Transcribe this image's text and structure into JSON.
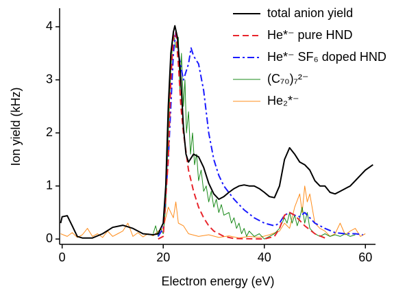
{
  "chart_data": {
    "type": "line",
    "xlabel": "Electron energy (eV)",
    "ylabel": "Ion yield (kHz)",
    "xlim": [
      -0.5,
      62
    ],
    "xticks": [
      0,
      20,
      40,
      60
    ],
    "ylim": [
      -0.1,
      4.35
    ],
    "yticks": [
      0,
      1,
      2,
      3,
      4
    ],
    "grid": false,
    "legend": "upper right",
    "series": [
      {
        "name": "total anion yield",
        "color": "#000000",
        "style": "solid",
        "width": 2,
        "x": [
          -0.3,
          0,
          1,
          2,
          3,
          4,
          6,
          8,
          10,
          12,
          14,
          16,
          18,
          19,
          20,
          20.5,
          21,
          21.5,
          22,
          22.3,
          22.8,
          23.5,
          24,
          24.5,
          25,
          26,
          27,
          28,
          29,
          30,
          31,
          32,
          33,
          34,
          35,
          36,
          37,
          38,
          39,
          40,
          41,
          42,
          43,
          44,
          45,
          46,
          47,
          48,
          49,
          50,
          51,
          52,
          53,
          54,
          55,
          56,
          57,
          58,
          59,
          60,
          61.5
        ],
        "values": [
          0.3,
          0.42,
          0.44,
          0.25,
          0.05,
          0.02,
          0.02,
          0.1,
          0.22,
          0.26,
          0.2,
          0.1,
          0.08,
          0.1,
          0.3,
          1.0,
          2.5,
          3.5,
          3.9,
          4.02,
          3.8,
          3.0,
          2.1,
          1.6,
          1.45,
          1.6,
          1.55,
          1.35,
          1.05,
          0.85,
          0.75,
          0.8,
          0.88,
          0.95,
          1.0,
          1.02,
          1.0,
          1.0,
          0.95,
          0.88,
          0.8,
          0.78,
          1.0,
          1.5,
          1.72,
          1.6,
          1.45,
          1.4,
          1.3,
          1.1,
          1.0,
          1.0,
          0.88,
          0.85,
          0.9,
          0.95,
          1.0,
          1.1,
          1.2,
          1.3,
          1.4
        ]
      },
      {
        "name": "He*⁻ pure HND",
        "color": "#e8242b",
        "style": "dashed",
        "width": 2,
        "x": [
          19,
          20,
          21,
          21.5,
          22,
          22.5,
          23,
          23.5,
          24,
          25,
          26,
          27,
          28,
          29,
          30,
          32,
          34,
          40,
          42,
          43,
          44,
          45,
          46,
          47,
          48,
          50,
          52
        ],
        "values": [
          0,
          0.05,
          1.5,
          3.0,
          3.8,
          3.9,
          3.3,
          2.5,
          2.0,
          1.3,
          0.9,
          0.6,
          0.4,
          0.25,
          0.15,
          0.05,
          0.01,
          0,
          0.05,
          0.2,
          0.45,
          0.5,
          0.45,
          0.35,
          0.25,
          0.1,
          0.02
        ]
      },
      {
        "name": "He*⁻ SF₆ doped HND",
        "color": "#1a1aff",
        "style": "dashdot",
        "width": 2,
        "x": [
          19,
          20,
          21,
          22,
          22.5,
          23,
          24,
          25,
          25.5,
          26,
          27,
          28,
          29,
          30,
          31,
          32,
          34,
          36,
          38,
          40,
          42,
          43,
          44,
          45,
          46,
          47,
          48,
          49,
          50,
          52,
          54,
          56,
          58,
          59.5
        ],
        "values": [
          0.05,
          0.2,
          1.5,
          3.5,
          3.9,
          3.5,
          3.0,
          3.3,
          3.6,
          3.45,
          3.3,
          2.8,
          2.0,
          1.5,
          1.2,
          1.0,
          0.75,
          0.55,
          0.4,
          0.3,
          0.25,
          0.3,
          0.45,
          0.5,
          0.45,
          0.42,
          0.5,
          0.4,
          0.3,
          0.2,
          0.12,
          0.1,
          0.1,
          0.08
        ]
      },
      {
        "name": "(C₇₀)₇²⁻",
        "color": "#1a8a1a",
        "style": "solid",
        "width": 1,
        "x": [
          18,
          18.5,
          19,
          19.5,
          20,
          20.5,
          21,
          21.5,
          22,
          22.5,
          23,
          23.3,
          23.6,
          24,
          24.3,
          24.6,
          25,
          25.4,
          25.8,
          26.2,
          26.6,
          27,
          27.5,
          28,
          28.5,
          29,
          29.5,
          30,
          30.5,
          31,
          31.5,
          32,
          33,
          33.5,
          34,
          34.5,
          35,
          35.5,
          36,
          36.5,
          37,
          38,
          39,
          40,
          41,
          42,
          43,
          44,
          44.5,
          45,
          45.5,
          46,
          46.5,
          47,
          47.5,
          48,
          48.5,
          49,
          50,
          51,
          52,
          53,
          54,
          55,
          56,
          57,
          58
        ],
        "values": [
          0.1,
          0.25,
          0.05,
          0.2,
          0.1,
          0.6,
          2.0,
          3.2,
          3.9,
          3.6,
          3.8,
          2.8,
          3.5,
          2.5,
          3.0,
          2.0,
          2.4,
          1.6,
          2.0,
          1.4,
          1.6,
          1.1,
          1.3,
          0.9,
          1.0,
          0.7,
          0.9,
          0.6,
          0.75,
          0.5,
          0.65,
          0.45,
          0.5,
          0.3,
          0.4,
          0.2,
          0.3,
          0.1,
          0.2,
          0.05,
          0.15,
          0.05,
          0.1,
          0.0,
          0.05,
          0.1,
          0.2,
          0.4,
          0.3,
          0.5,
          0.3,
          0.45,
          0.25,
          0.4,
          0.6,
          0.3,
          0.5,
          0.2,
          0.1,
          0.05,
          0.1,
          0.05,
          0.08,
          0.05,
          0.1,
          0.05,
          0.08
        ]
      },
      {
        "name": "He₂*⁻",
        "color": "#ff8c1a",
        "style": "solid",
        "width": 1,
        "x": [
          -0.3,
          1,
          2,
          3,
          4,
          5,
          6,
          7,
          8,
          9,
          10,
          11,
          12,
          13,
          14,
          15,
          16,
          17,
          18,
          19,
          20,
          21,
          22,
          22.5,
          23,
          24,
          25,
          27,
          29,
          31,
          33,
          35,
          37,
          39,
          41,
          43,
          44,
          45,
          46,
          47,
          47.5,
          48,
          48.5,
          49,
          50,
          51,
          52,
          53,
          54,
          55,
          56,
          57,
          58,
          59,
          60
        ],
        "values": [
          0.1,
          0.05,
          0.12,
          0.03,
          0.08,
          0.2,
          0.05,
          0.1,
          0.03,
          0.15,
          0.05,
          0.1,
          0.15,
          0.3,
          0.05,
          0.12,
          0.04,
          0.1,
          0.06,
          0.15,
          0.2,
          0.6,
          0.4,
          0.7,
          0.3,
          0.25,
          0.1,
          0.05,
          0.08,
          0.03,
          0.06,
          0.02,
          0.05,
          0.03,
          0.08,
          0.15,
          0.3,
          0.2,
          0.6,
          0.85,
          0.5,
          1.0,
          0.7,
          0.85,
          0.3,
          0.2,
          0.15,
          0.05,
          0.1,
          0.3,
          0.08,
          0.15,
          0.2,
          0.05,
          0.1
        ]
      }
    ]
  }
}
